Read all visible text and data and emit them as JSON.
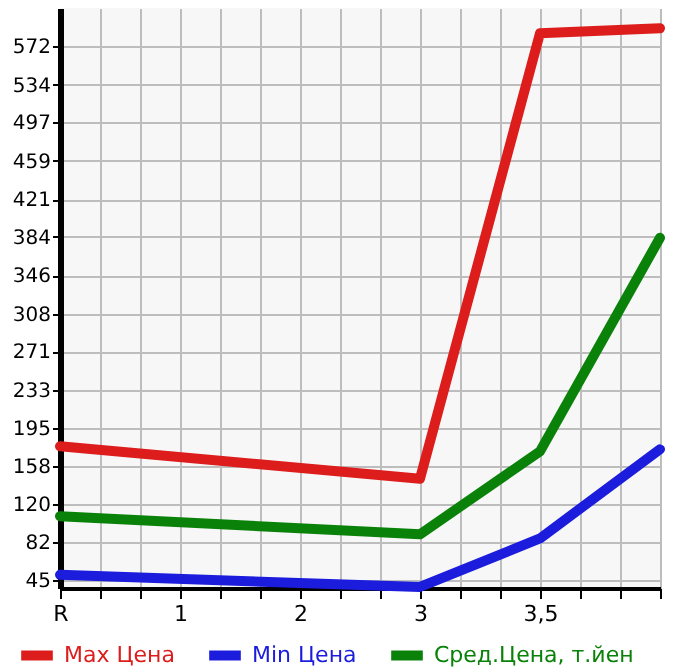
{
  "chart_data": {
    "type": "line",
    "categories": [
      "R",
      "1",
      "2",
      "3",
      "3,5",
      null
    ],
    "series": [
      {
        "name": "Max Цена",
        "color": "#dd1c1c",
        "values": [
          177,
          null,
          null,
          145,
          585,
          590
        ]
      },
      {
        "name": "Min Цена",
        "color": "#1c1cdd",
        "values": [
          50,
          null,
          null,
          38,
          86,
          174
        ]
      },
      {
        "name": "Сред.Цена, т.йен",
        "color": "#0a820a",
        "values": [
          108,
          null,
          null,
          90,
          172,
          383
        ]
      }
    ],
    "ylim": [
      37,
      610
    ],
    "yticks": [
      45,
      82,
      120,
      158,
      195,
      233,
      271,
      308,
      346,
      384,
      421,
      459,
      497,
      534,
      572
    ],
    "grid": true,
    "legend": "bottom",
    "marker": "none",
    "line_style": "solid"
  }
}
